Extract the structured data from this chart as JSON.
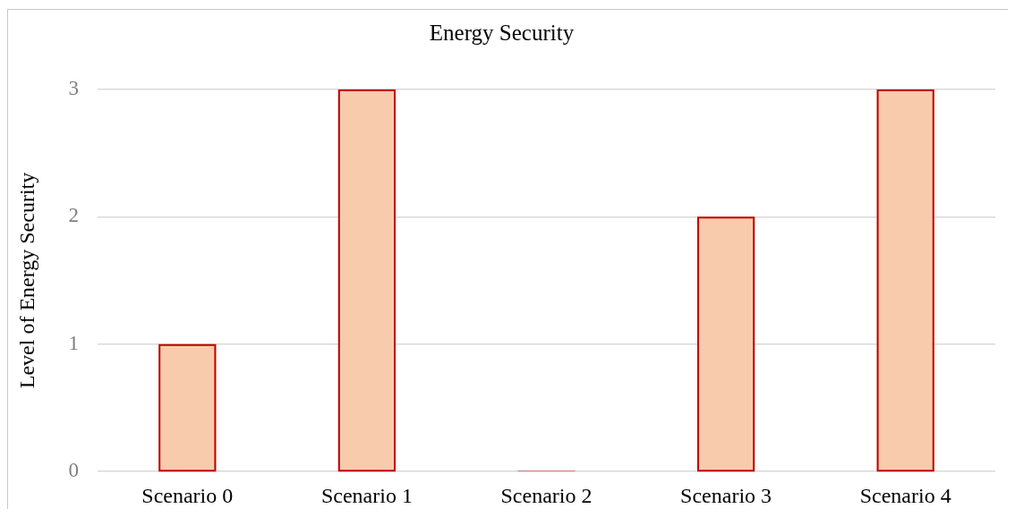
{
  "chart_data": {
    "type": "bar",
    "title": "Energy Security",
    "ylabel": "Level of Energy Security",
    "categories": [
      "Scenario 0",
      "Scenario 1",
      "Scenario 2",
      "Scenario 3",
      "Scenario 4"
    ],
    "values": [
      1,
      3,
      0,
      2,
      3
    ],
    "color": "#f8cbad",
    "ylim": [
      0,
      3
    ],
    "yticks": [
      0,
      1,
      2,
      3
    ],
    "grid": "y"
  }
}
